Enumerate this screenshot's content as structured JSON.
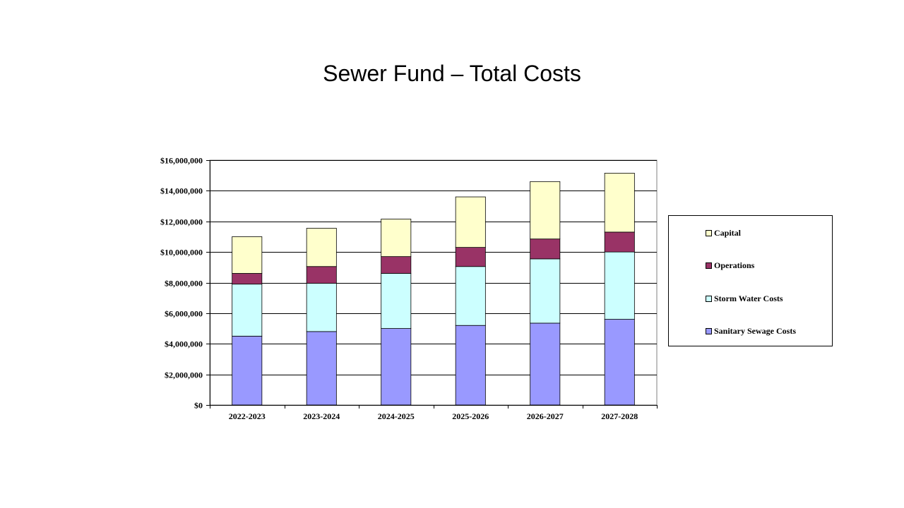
{
  "slide": {
    "title": "Sewer Fund – Total Costs"
  },
  "chart_data": {
    "type": "bar",
    "stacked": true,
    "title": "Sewer Fund – Total Costs",
    "xlabel": "",
    "ylabel": "",
    "categories": [
      "2022-2023",
      "2023-2024",
      "2024-2025",
      "2025-2026",
      "2026-2027",
      "2027-2028"
    ],
    "ylim": [
      0,
      16000000
    ],
    "yticks": [
      0,
      2000000,
      4000000,
      6000000,
      8000000,
      10000000,
      12000000,
      14000000,
      16000000
    ],
    "ytick_labels": [
      "$0",
      "$2,000,000",
      "$4,000,000",
      "$6,000,000",
      "$8,000,000",
      "$10,000,000",
      "$12,000,000",
      "$14,000,000",
      "$16,000,000"
    ],
    "grid": true,
    "legend_position": "right",
    "series": [
      {
        "name": "Sanitary Sewage Costs",
        "color": "#9999ff",
        "values": [
          4500000,
          4800000,
          5000000,
          5200000,
          5350000,
          5600000
        ]
      },
      {
        "name": "Storm Water Costs",
        "color": "#ccffff",
        "values": [
          3400000,
          3150000,
          3600000,
          3850000,
          4200000,
          4400000
        ]
      },
      {
        "name": "Operations",
        "color": "#993366",
        "values": [
          700000,
          1100000,
          1100000,
          1250000,
          1300000,
          1300000
        ]
      },
      {
        "name": "Capital",
        "color": "#ffffcc",
        "values": [
          2400000,
          2500000,
          2450000,
          3300000,
          3750000,
          3850000
        ]
      }
    ]
  }
}
